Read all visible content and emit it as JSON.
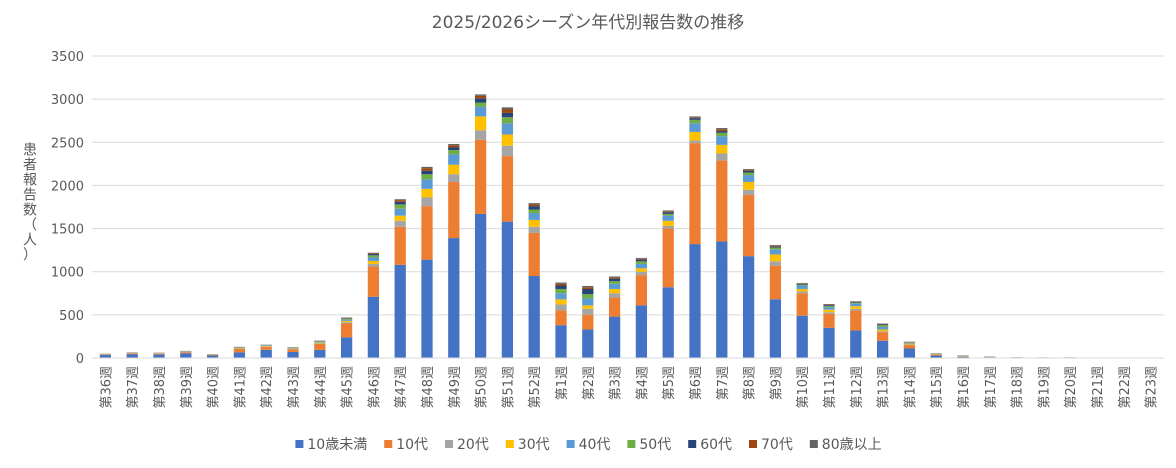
{
  "chart_data": {
    "type": "bar",
    "stacked": true,
    "title": "2025/2026シーズン年代別報告数の推移",
    "ylabel": "患者報告数（人）",
    "xlabel": "",
    "ylim": [
      0,
      3500
    ],
    "yticks": [
      0,
      500,
      1000,
      1500,
      2000,
      2500,
      3000,
      3500
    ],
    "grid": true,
    "legend_position": "bottom",
    "categories": [
      "第36週",
      "第37週",
      "第38週",
      "第39週",
      "第40週",
      "第41週",
      "第42週",
      "第43週",
      "第44週",
      "第45週",
      "第46週",
      "第47週",
      "第48週",
      "第49週",
      "第50週",
      "第51週",
      "第52週",
      "第1週",
      "第2週",
      "第3週",
      "第4週",
      "第5週",
      "第6週",
      "第7週",
      "第8週",
      "第9週",
      "第10週",
      "第11週",
      "第12週",
      "第13週",
      "第14週",
      "第15週",
      "第16週",
      "第17週",
      "第18週",
      "第19週",
      "第20週",
      "第21週",
      "第22週",
      "第23週"
    ],
    "series": [
      {
        "name": "10歳未満",
        "color": "#4472C4",
        "values": [
          35,
          45,
          40,
          55,
          30,
          65,
          95,
          70,
          95,
          240,
          710,
          1080,
          1140,
          1390,
          1670,
          1580,
          950,
          380,
          330,
          480,
          610,
          820,
          1320,
          1350,
          1180,
          680,
          490,
          350,
          320,
          200,
          110,
          30,
          15,
          8,
          5,
          3,
          2,
          0,
          0,
          0
        ]
      },
      {
        "name": "10代",
        "color": "#ED7D31",
        "values": [
          5,
          8,
          10,
          12,
          6,
          40,
          35,
          30,
          70,
          160,
          350,
          440,
          620,
          650,
          860,
          760,
          500,
          170,
          170,
          220,
          350,
          680,
          1170,
          940,
          710,
          390,
          260,
          160,
          230,
          100,
          40,
          10,
          5,
          3,
          2,
          1,
          1,
          0,
          0,
          0
        ]
      },
      {
        "name": "20代",
        "color": "#A5A5A5",
        "values": [
          2,
          3,
          3,
          3,
          2,
          5,
          6,
          6,
          8,
          15,
          30,
          70,
          100,
          90,
          110,
          120,
          70,
          70,
          70,
          50,
          40,
          30,
          30,
          80,
          60,
          50,
          20,
          20,
          20,
          10,
          8,
          3,
          2,
          1,
          1,
          1,
          1,
          0,
          0,
          0
        ]
      },
      {
        "name": "30代",
        "color": "#FFC000",
        "values": [
          2,
          2,
          2,
          3,
          2,
          5,
          5,
          5,
          8,
          15,
          35,
          60,
          100,
          110,
          160,
          130,
          80,
          60,
          40,
          50,
          40,
          60,
          100,
          100,
          90,
          80,
          30,
          30,
          30,
          20,
          10,
          3,
          2,
          1,
          1,
          1,
          3,
          0,
          0,
          0
        ]
      },
      {
        "name": "40代",
        "color": "#5B9BD5",
        "values": [
          2,
          2,
          2,
          3,
          2,
          5,
          5,
          5,
          8,
          15,
          40,
          80,
          110,
          120,
          110,
          130,
          80,
          70,
          80,
          60,
          50,
          60,
          100,
          100,
          80,
          60,
          40,
          30,
          30,
          30,
          10,
          4,
          2,
          1,
          1,
          1,
          1,
          0,
          0,
          0
        ]
      },
      {
        "name": "50代",
        "color": "#70AD47",
        "values": [
          1,
          2,
          2,
          2,
          1,
          3,
          3,
          3,
          4,
          10,
          25,
          50,
          60,
          50,
          50,
          70,
          40,
          50,
          50,
          30,
          30,
          20,
          40,
          40,
          30,
          20,
          10,
          15,
          10,
          20,
          5,
          2,
          2,
          1,
          1,
          1,
          1,
          0,
          0,
          0
        ]
      },
      {
        "name": "60代",
        "color": "#264478",
        "values": [
          1,
          1,
          1,
          2,
          1,
          2,
          2,
          2,
          3,
          5,
          15,
          30,
          40,
          30,
          50,
          50,
          40,
          40,
          60,
          30,
          20,
          20,
          20,
          20,
          20,
          10,
          10,
          10,
          8,
          10,
          3,
          1,
          1,
          1,
          0,
          0,
          0,
          0,
          0,
          0
        ]
      },
      {
        "name": "70代",
        "color": "#9E480E",
        "values": [
          1,
          1,
          1,
          1,
          1,
          2,
          2,
          2,
          3,
          5,
          10,
          20,
          30,
          25,
          30,
          40,
          20,
          20,
          20,
          15,
          10,
          10,
          10,
          20,
          10,
          10,
          5,
          5,
          5,
          5,
          2,
          1,
          1,
          1,
          0,
          0,
          0,
          0,
          0,
          0
        ]
      },
      {
        "name": "80歳以上",
        "color": "#636363",
        "values": [
          1,
          1,
          1,
          1,
          1,
          2,
          2,
          2,
          3,
          5,
          5,
          10,
          15,
          15,
          15,
          25,
          15,
          15,
          15,
          10,
          10,
          10,
          10,
          15,
          10,
          10,
          5,
          5,
          5,
          5,
          2,
          1,
          1,
          1,
          0,
          0,
          0,
          0,
          0,
          0
        ]
      }
    ]
  }
}
